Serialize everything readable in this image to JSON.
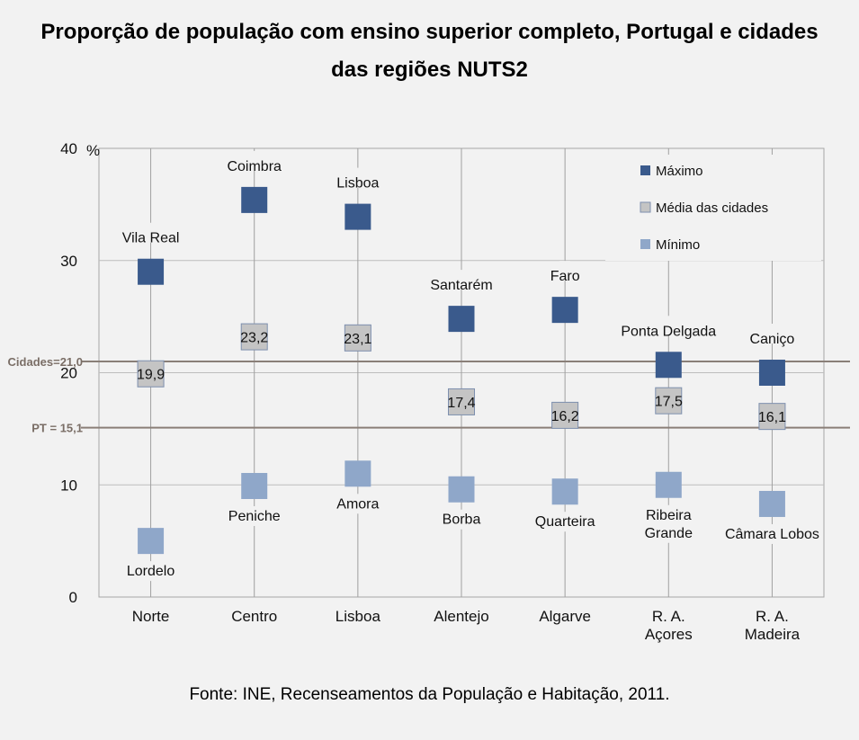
{
  "chart_data": {
    "type": "scatter",
    "title_line1": "Proporção de população com ensino superior completo, Portugal e cidades",
    "title_line2": "das regiões NUTS2",
    "ylabel": "%",
    "ylim": [
      0,
      40
    ],
    "yticks": [
      "0",
      "10",
      "20",
      "30",
      "40"
    ],
    "ytick_values": [
      0,
      10,
      20,
      30,
      40
    ],
    "regions": [
      {
        "label": [
          "Norte"
        ],
        "max": 29.0,
        "max_city": [
          "Vila Real"
        ],
        "avg": 19.9,
        "avg_label": "19,9",
        "min": 5.0,
        "min_city": [
          "Lordelo"
        ]
      },
      {
        "label": [
          "Centro"
        ],
        "max": 35.4,
        "max_city": [
          "Coimbra"
        ],
        "avg": 23.2,
        "avg_label": "23,2",
        "min": 9.9,
        "min_city": [
          "Peniche"
        ]
      },
      {
        "label": [
          "Lisboa"
        ],
        "max": 33.9,
        "max_city": [
          "Lisboa"
        ],
        "avg": 23.1,
        "avg_label": "23,1",
        "min": 11.0,
        "min_city": [
          "Amora"
        ]
      },
      {
        "label": [
          "Alentejo"
        ],
        "max": 24.8,
        "max_city": [
          "Santarém"
        ],
        "avg": 17.4,
        "avg_label": "17,4",
        "min": 9.6,
        "min_city": [
          "Borba"
        ]
      },
      {
        "label": [
          "Algarve"
        ],
        "max": 25.6,
        "max_city": [
          "Faro"
        ],
        "avg": 16.2,
        "avg_label": "16,2",
        "min": 9.4,
        "min_city": [
          "Quarteira"
        ]
      },
      {
        "label": [
          "R. A.",
          "Açores"
        ],
        "max": 20.7,
        "max_city": [
          "Ponta Delgada"
        ],
        "avg": 17.5,
        "avg_label": "17,5",
        "min": 10.0,
        "min_city": [
          "Ribeira",
          "Grande"
        ]
      },
      {
        "label": [
          "R. A.",
          "Madeira"
        ],
        "max": 20.0,
        "max_city": [
          "Caniço"
        ],
        "avg": 16.1,
        "avg_label": "16,1",
        "min": 8.3,
        "min_city": [
          "Câmara Lobos"
        ]
      }
    ],
    "reference_lines": [
      {
        "label": "Cidades=21,0",
        "value": 21.0
      },
      {
        "label": "PT = 15,1",
        "value": 15.1
      }
    ],
    "legend": [
      {
        "key": "max",
        "label": "Máximo",
        "color": "#3a5a8c"
      },
      {
        "key": "avg",
        "label": "Média das cidades",
        "color": "#c4c4c4"
      },
      {
        "key": "min",
        "label": "Mínimo",
        "color": "#8fa7c9"
      }
    ],
    "legend_position": "top-right",
    "grid": true
  },
  "source": "Fonte: INE, Recenseamentos da População e Habitação, 2011."
}
